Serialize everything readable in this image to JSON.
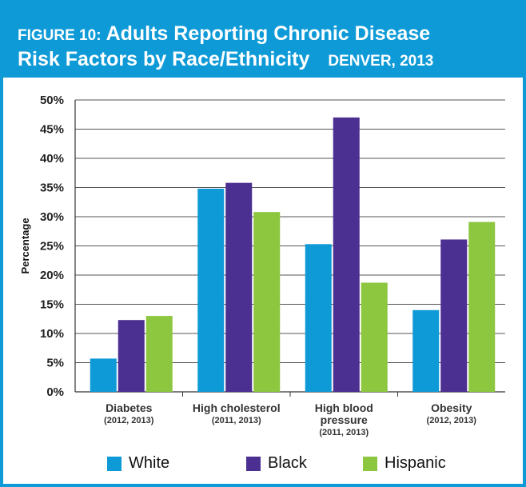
{
  "header": {
    "figure_label": "FIGURE 10:",
    "title_line1": "Adults Reporting Chronic Disease",
    "title_line2": "Risk Factors by Race/Ethnicity",
    "location": "DENVER, 2013"
  },
  "colors": {
    "brand": "#0e9ad7",
    "White": "#0e9ad7",
    "Black": "#4b2f91",
    "Hispanic": "#8dc63f"
  },
  "chart_data": {
    "type": "bar",
    "ylabel": "Percentage",
    "xlabel": "",
    "ylim": [
      0,
      50
    ],
    "y_ticks": [
      "0%",
      "5%",
      "10%",
      "15%",
      "20%",
      "25%",
      "30%",
      "35%",
      "40%",
      "45%",
      "50%"
    ],
    "grid": true,
    "legend_position": "bottom",
    "categories": [
      {
        "lines": [
          "Diabetes"
        ],
        "sub": [
          "(2012, 2013)"
        ]
      },
      {
        "lines": [
          "High cholesterol"
        ],
        "sub": [
          "(2011, 2013)"
        ]
      },
      {
        "lines": [
          "High blood",
          "pressure"
        ],
        "sub": [
          "(2011, 2013)"
        ]
      },
      {
        "lines": [
          "Obesity"
        ],
        "sub": [
          "(2012, 2013)"
        ]
      }
    ],
    "series": [
      {
        "name": "White",
        "values": [
          5.7,
          34.8,
          25.3,
          14.0
        ]
      },
      {
        "name": "Black",
        "values": [
          12.3,
          35.8,
          47.0,
          26.1
        ]
      },
      {
        "name": "Hispanic",
        "values": [
          13.0,
          30.8,
          18.7,
          29.1
        ]
      }
    ]
  }
}
